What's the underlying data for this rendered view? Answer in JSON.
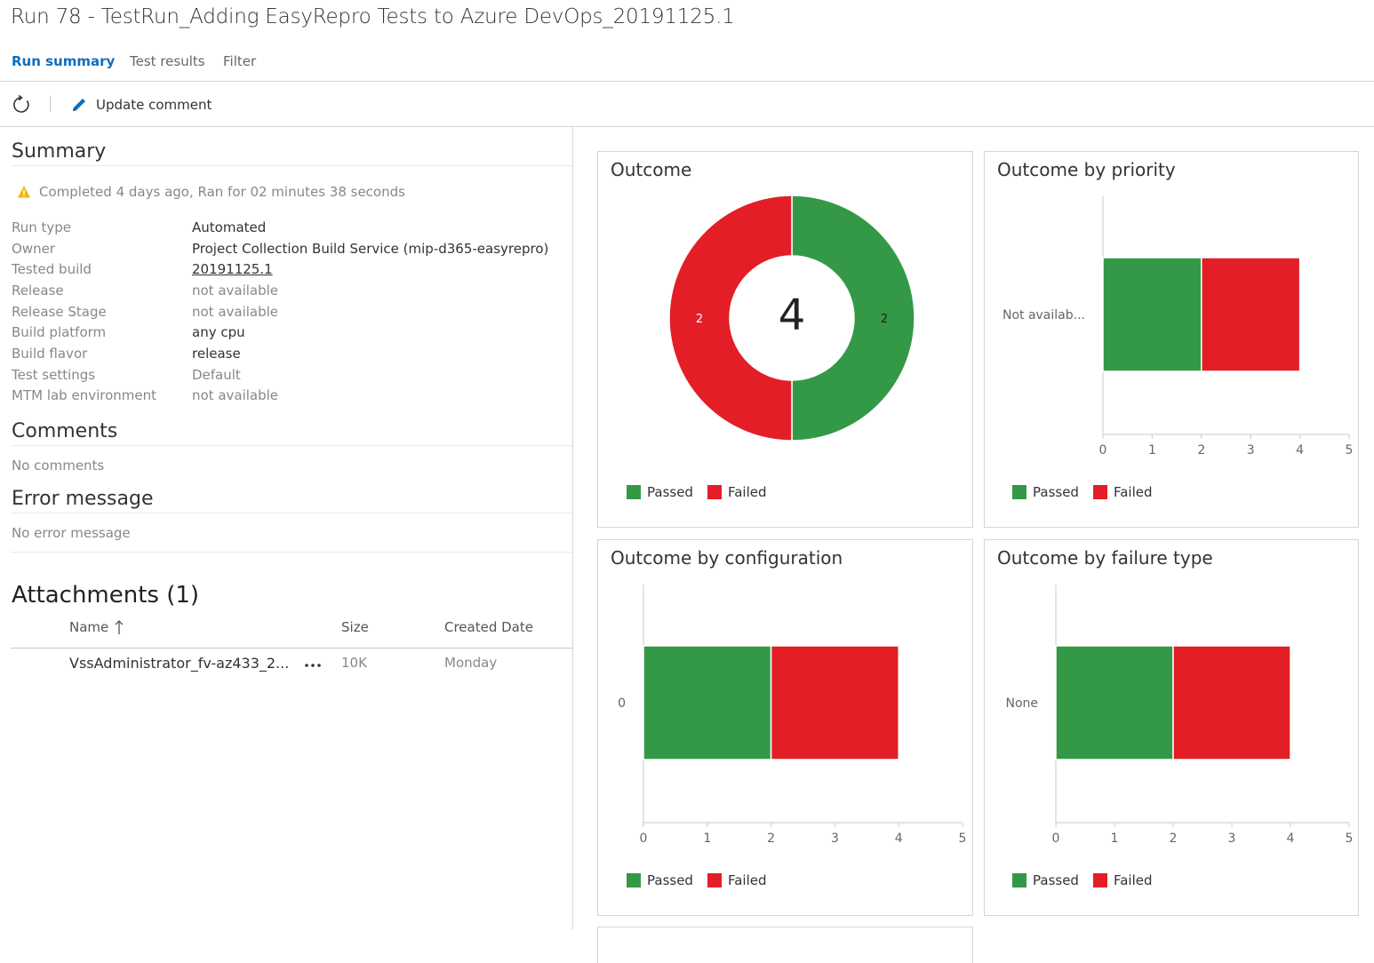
{
  "header": {
    "title": "Run 78 - TestRun_Adding EasyRepro Tests to Azure DevOps_20191125.1",
    "tabs": [
      "Run summary",
      "Test results",
      "Filter"
    ],
    "active_tab": "Run summary"
  },
  "toolbar": {
    "refresh_icon": "refresh-icon",
    "update_comment_label": "Update comment",
    "update_comment_icon": "pencil-icon"
  },
  "summary": {
    "title": "Summary",
    "status_text": "Completed 4 days ago, Ran for 02 minutes 38 seconds",
    "status_icon": "warning-icon",
    "fields": [
      {
        "label": "Run type",
        "value": "Automated"
      },
      {
        "label": "Owner",
        "value": "Project Collection Build Service (mip-d365-easyrepro)"
      },
      {
        "label": "Tested build",
        "value": "20191125.1"
      },
      {
        "label": "Release",
        "value": "not available"
      },
      {
        "label": "Release Stage",
        "value": "not available"
      },
      {
        "label": "Build platform",
        "value": "any cpu"
      },
      {
        "label": "Build flavor",
        "value": "release"
      },
      {
        "label": "Test settings",
        "value": "Default"
      },
      {
        "label": "MTM lab environment",
        "value": "not available"
      }
    ]
  },
  "comments": {
    "title": "Comments",
    "empty_text": "No comments"
  },
  "error": {
    "title": "Error message",
    "empty_text": "No error message"
  },
  "attachments": {
    "title": "Attachments (1)",
    "columns": {
      "name": "Name",
      "size": "Size",
      "created": "Created Date"
    },
    "sort_icon": "sort-ascending-icon",
    "rows": [
      {
        "name": "VssAdministrator_fv-az433_2...",
        "size": "10K",
        "created": "Monday"
      }
    ]
  },
  "colors": {
    "passed": "#339947",
    "failed": "#e31e26",
    "link": "#106ebe"
  },
  "legend": {
    "passed": "Passed",
    "failed": "Failed"
  },
  "chart_data": [
    {
      "type": "pie",
      "title": "Outcome",
      "center_label": "4",
      "slices": [
        {
          "name": "Passed",
          "value": 2
        },
        {
          "name": "Failed",
          "value": 2
        }
      ]
    },
    {
      "type": "bar",
      "title": "Outcome by priority",
      "orientation": "horizontal",
      "stacked": true,
      "categories": [
        "Not availab..."
      ],
      "series": [
        {
          "name": "Passed",
          "values": [
            2
          ]
        },
        {
          "name": "Failed",
          "values": [
            2
          ]
        }
      ],
      "xlim": [
        0,
        5
      ],
      "xticks": [
        "0",
        "1",
        "2",
        "3",
        "4",
        "5"
      ]
    },
    {
      "type": "bar",
      "title": "Outcome by configuration",
      "orientation": "horizontal",
      "stacked": true,
      "categories": [
        "0"
      ],
      "series": [
        {
          "name": "Passed",
          "values": [
            2
          ]
        },
        {
          "name": "Failed",
          "values": [
            2
          ]
        }
      ],
      "xlim": [
        0,
        5
      ],
      "xticks": [
        "0",
        "1",
        "2",
        "3",
        "4",
        "5"
      ]
    },
    {
      "type": "bar",
      "title": "Outcome by failure type",
      "orientation": "horizontal",
      "stacked": true,
      "categories": [
        "None"
      ],
      "series": [
        {
          "name": "Passed",
          "values": [
            2
          ]
        },
        {
          "name": "Failed",
          "values": [
            2
          ]
        }
      ],
      "xlim": [
        0,
        5
      ],
      "xticks": [
        "0",
        "1",
        "2",
        "3",
        "4",
        "5"
      ]
    }
  ]
}
